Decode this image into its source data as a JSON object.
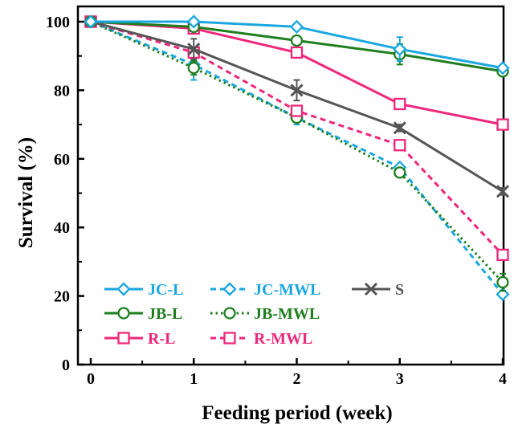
{
  "chart_data": {
    "type": "line",
    "xlabel": "Feeding period (week)",
    "ylabel": "Survival (%)",
    "x": [
      0,
      1,
      2,
      3,
      4
    ],
    "xlim": [
      0,
      4
    ],
    "ylim": [
      0,
      100
    ],
    "xticks": [
      "0",
      "1",
      "2",
      "3",
      "4"
    ],
    "yticks": [
      "0",
      "20",
      "40",
      "60",
      "80",
      "100"
    ],
    "grid": false,
    "legend_position": "bottom-left",
    "series": [
      {
        "name": "JC-L",
        "values": [
          100,
          100,
          98.5,
          92,
          86.5
        ],
        "errors": [
          0,
          0,
          0.5,
          3.5,
          0.5
        ],
        "color": "#1aa7e0",
        "dash": "solid",
        "marker": "diamond"
      },
      {
        "name": "JB-L",
        "values": [
          100,
          98.5,
          94.5,
          90.5,
          85.5
        ],
        "errors": [
          0,
          0.5,
          1,
          3,
          1
        ],
        "color": "#1e7e1e",
        "dash": "solid",
        "marker": "circle"
      },
      {
        "name": "R-L",
        "values": [
          100,
          98,
          91,
          76,
          70
        ],
        "errors": [
          0,
          1,
          1.5,
          1,
          0.5
        ],
        "color": "#f0267a",
        "dash": "solid",
        "marker": "square"
      },
      {
        "name": "JC-MWL",
        "values": [
          100,
          87.5,
          72,
          57.5,
          20.5
        ],
        "errors": [
          0,
          4.5,
          2,
          0.8,
          0.5
        ],
        "color": "#1aa7e0",
        "dash": "dash",
        "marker": "diamond"
      },
      {
        "name": "JB-MWL",
        "values": [
          100,
          86.5,
          72,
          56,
          24
        ],
        "errors": [
          0,
          2,
          1,
          1,
          2.5
        ],
        "color": "#1e7e1e",
        "dash": "dot",
        "marker": "circle"
      },
      {
        "name": "R-MWL",
        "values": [
          100,
          91,
          74,
          64,
          32
        ],
        "errors": [
          0,
          1.5,
          1.5,
          1,
          0.5
        ],
        "color": "#f0267a",
        "dash": "dash",
        "marker": "square"
      },
      {
        "name": "S",
        "values": [
          100,
          92,
          80,
          69,
          50.5
        ],
        "errors": [
          0,
          3,
          3,
          1,
          1
        ],
        "color": "#555555",
        "dash": "solid",
        "marker": "x"
      }
    ]
  }
}
